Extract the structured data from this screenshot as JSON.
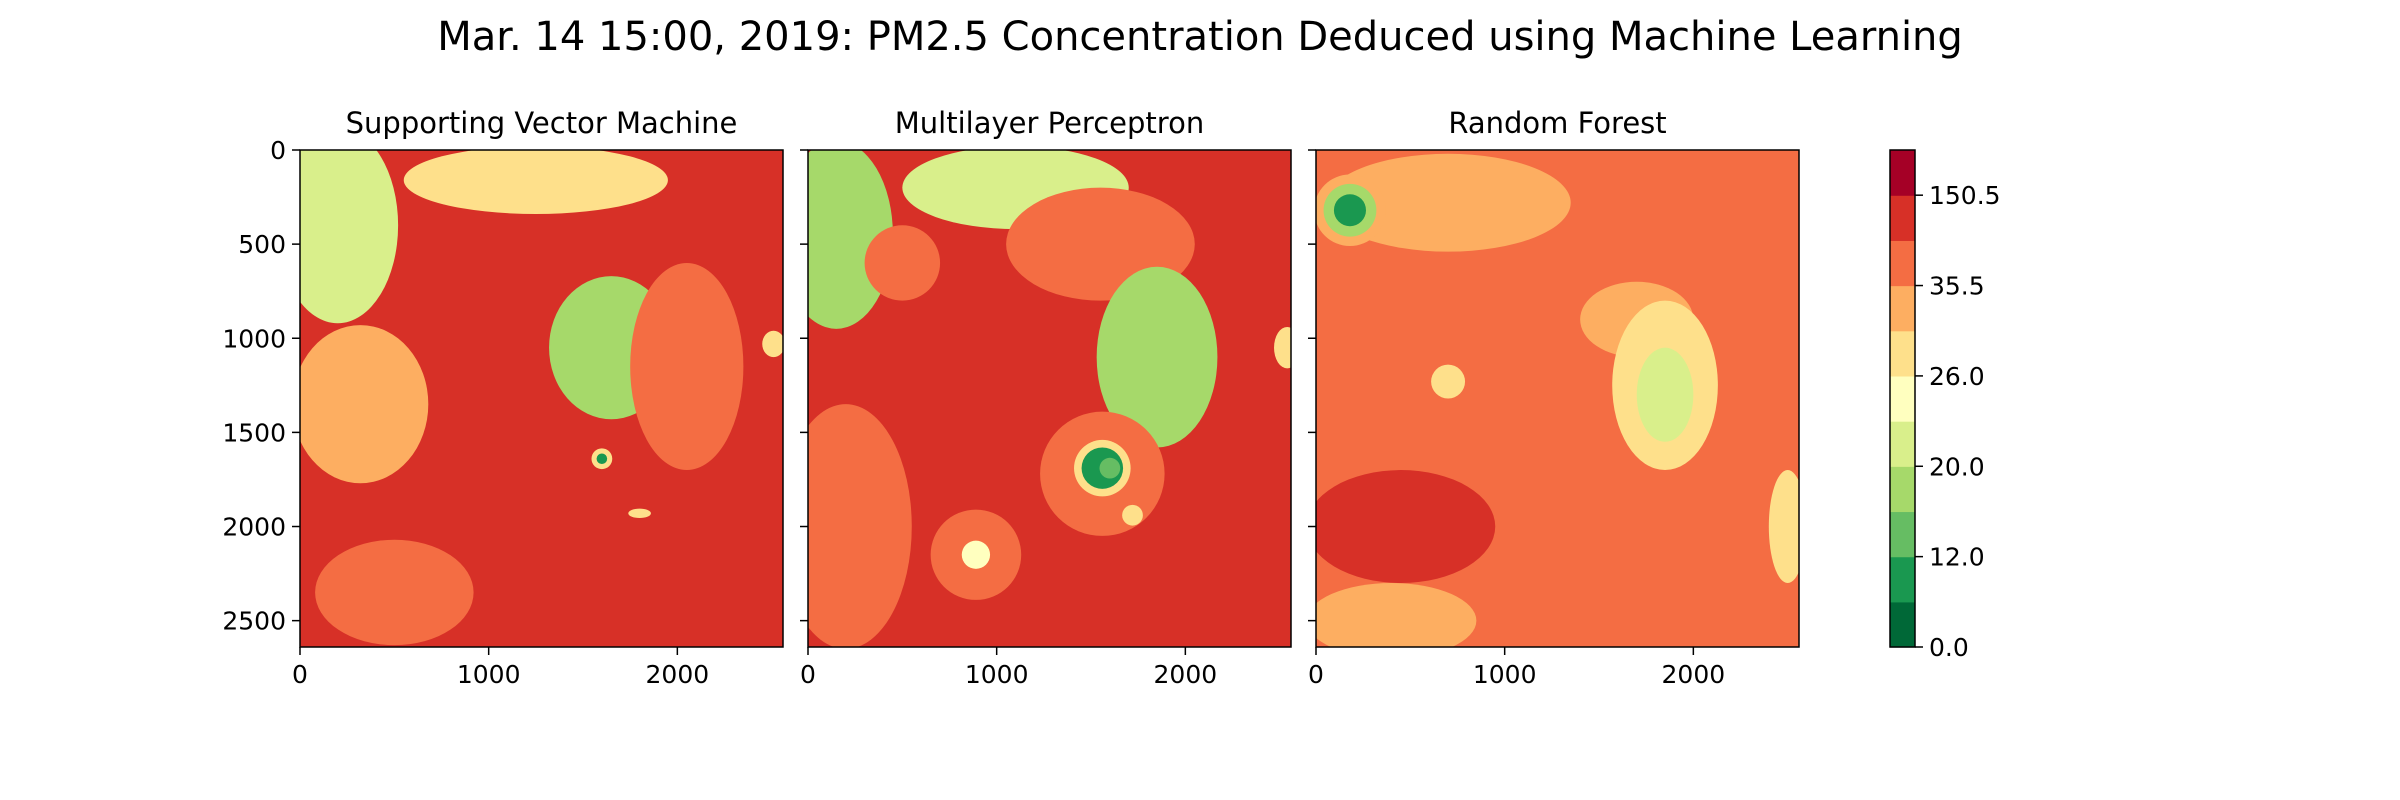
{
  "figure": {
    "title": "Mar. 14 15:00, 2019: PM2.5 Concentration Deduced using Machine Learning"
  },
  "chart_data": [
    {
      "type": "heatmap",
      "title": "Supporting Vector Machine",
      "xlabel": "",
      "ylabel": "",
      "xlim": [
        0,
        2560
      ],
      "ylim": [
        2640,
        0
      ],
      "x_ticks": [
        0,
        1000,
        2000
      ],
      "y_ticks": [
        0,
        500,
        1000,
        1500,
        2000,
        2500
      ],
      "grid": false,
      "base_color": "#d73027",
      "regions": [
        {
          "x": 200,
          "y": 400,
          "rx": 320,
          "ry": 520,
          "color": "#d9ef8b"
        },
        {
          "x": 320,
          "y": 1350,
          "rx": 360,
          "ry": 420,
          "color": "#fdae61"
        },
        {
          "x": 1250,
          "y": 160,
          "rx": 700,
          "ry": 180,
          "color": "#fee08b"
        },
        {
          "x": 1650,
          "y": 1050,
          "rx": 330,
          "ry": 380,
          "color": "#a6d96a"
        },
        {
          "x": 2050,
          "y": 1150,
          "rx": 300,
          "ry": 550,
          "color": "#f46d43"
        },
        {
          "x": 500,
          "y": 2350,
          "rx": 420,
          "ry": 280,
          "color": "#f46d43"
        },
        {
          "x": 1600,
          "y": 1640,
          "rx": 55,
          "ry": 55,
          "color": "#fee08b"
        },
        {
          "x": 1600,
          "y": 1640,
          "rx": 28,
          "ry": 28,
          "color": "#1a9850"
        },
        {
          "x": 2510,
          "y": 1030,
          "rx": 60,
          "ry": 70,
          "color": "#fee08b"
        },
        {
          "x": 1800,
          "y": 1930,
          "rx": 60,
          "ry": 25,
          "color": "#fee08b"
        }
      ]
    },
    {
      "type": "heatmap",
      "title": "Multilayer Perceptron",
      "xlabel": "",
      "ylabel": "",
      "xlim": [
        0,
        2560
      ],
      "ylim": [
        2640,
        0
      ],
      "x_ticks": [
        0,
        1000,
        2000
      ],
      "y_ticks": [
        0,
        500,
        1000,
        1500,
        2000,
        2500
      ],
      "grid": false,
      "base_color": "#d73027",
      "regions": [
        {
          "x": 150,
          "y": 450,
          "rx": 300,
          "ry": 500,
          "color": "#a6d96a"
        },
        {
          "x": 1100,
          "y": 200,
          "rx": 600,
          "ry": 220,
          "color": "#d9ef8b"
        },
        {
          "x": 1550,
          "y": 500,
          "rx": 500,
          "ry": 300,
          "color": "#f46d43"
        },
        {
          "x": 1850,
          "y": 1100,
          "rx": 320,
          "ry": 480,
          "color": "#a6d96a"
        },
        {
          "x": 500,
          "y": 600,
          "rx": 200,
          "ry": 200,
          "color": "#f46d43"
        },
        {
          "x": 200,
          "y": 2000,
          "rx": 350,
          "ry": 650,
          "color": "#f46d43"
        },
        {
          "x": 1560,
          "y": 1720,
          "rx": 330,
          "ry": 330,
          "color": "#f46d43"
        },
        {
          "x": 1560,
          "y": 1690,
          "rx": 150,
          "ry": 150,
          "color": "#fee08b"
        },
        {
          "x": 1560,
          "y": 1690,
          "rx": 110,
          "ry": 110,
          "color": "#1a9850"
        },
        {
          "x": 1600,
          "y": 1690,
          "rx": 55,
          "ry": 55,
          "color": "#66bd63"
        },
        {
          "x": 890,
          "y": 2150,
          "rx": 240,
          "ry": 240,
          "color": "#f46d43"
        },
        {
          "x": 890,
          "y": 2150,
          "rx": 75,
          "ry": 75,
          "color": "#ffffbf"
        },
        {
          "x": 1720,
          "y": 1940,
          "rx": 55,
          "ry": 55,
          "color": "#fee08b"
        },
        {
          "x": 2540,
          "y": 1050,
          "rx": 70,
          "ry": 110,
          "color": "#fee08b"
        }
      ]
    },
    {
      "type": "heatmap",
      "title": "Random Forest",
      "xlabel": "",
      "ylabel": "",
      "xlim": [
        0,
        2560
      ],
      "ylim": [
        2640,
        0
      ],
      "x_ticks": [
        0,
        1000,
        2000
      ],
      "y_ticks": [
        0,
        500,
        1000,
        1500,
        2000,
        2500
      ],
      "grid": false,
      "base_color": "#f46d43",
      "regions": [
        {
          "x": 700,
          "y": 280,
          "rx": 650,
          "ry": 260,
          "color": "#fdae61"
        },
        {
          "x": 1700,
          "y": 900,
          "rx": 300,
          "ry": 200,
          "color": "#fdae61"
        },
        {
          "x": 1850,
          "y": 1250,
          "rx": 280,
          "ry": 450,
          "color": "#fee08b"
        },
        {
          "x": 1850,
          "y": 1300,
          "rx": 150,
          "ry": 250,
          "color": "#d9ef8b"
        },
        {
          "x": 450,
          "y": 2000,
          "rx": 500,
          "ry": 300,
          "color": "#d73027"
        },
        {
          "x": 400,
          "y": 2500,
          "rx": 450,
          "ry": 200,
          "color": "#fdae61"
        },
        {
          "x": 180,
          "y": 320,
          "rx": 190,
          "ry": 190,
          "color": "#fdae61"
        },
        {
          "x": 180,
          "y": 320,
          "rx": 140,
          "ry": 140,
          "color": "#a6d96a"
        },
        {
          "x": 180,
          "y": 320,
          "rx": 85,
          "ry": 85,
          "color": "#1a9850"
        },
        {
          "x": 700,
          "y": 1230,
          "rx": 90,
          "ry": 90,
          "color": "#fee08b"
        },
        {
          "x": 2500,
          "y": 2000,
          "rx": 100,
          "ry": 300,
          "color": "#fee08b"
        }
      ]
    }
  ],
  "colorbar": {
    "levels": [
      0.0,
      6.0,
      12.0,
      16.0,
      20.0,
      23.0,
      26.0,
      30.5,
      35.5,
      93.0,
      150.5,
      200.0,
      250.0
    ],
    "tick_values": [
      0.0,
      12.0,
      20.0,
      26.0,
      35.5,
      150.5
    ],
    "tick_labels": [
      "0.0",
      "12.0",
      "20.0",
      "26.0",
      "35.5",
      "150.5"
    ],
    "colors": [
      "#006837",
      "#1a9850",
      "#66bd63",
      "#a6d96a",
      "#d9ef8b",
      "#ffffbf",
      "#fee08b",
      "#fdae61",
      "#f46d43",
      "#d73027",
      "#a50026"
    ]
  }
}
